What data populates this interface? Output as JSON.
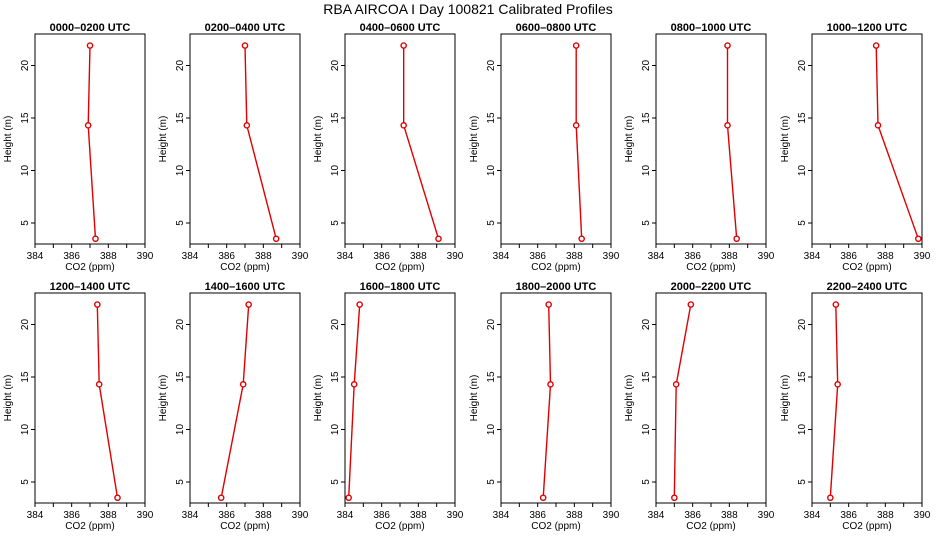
{
  "figure": {
    "title": "RBA AIRCOA I  Day 100821  Calibrated Profiles"
  },
  "colors": {
    "series": "#e00000",
    "axis": "#000000",
    "background": "#ffffff"
  },
  "chart_data": [
    {
      "type": "line",
      "title": "0000–0200 UTC",
      "xlabel": "CO2 (ppm)",
      "ylabel": "Height (m)",
      "xlim": [
        384,
        390
      ],
      "ylim": [
        3,
        23
      ],
      "xticks": [
        384,
        386,
        388,
        390
      ],
      "yticks": [
        5,
        10,
        15,
        20
      ],
      "series": [
        {
          "name": "profile",
          "x": [
            387.3,
            386.9,
            387.0
          ],
          "y": [
            3.5,
            14.3,
            21.9
          ]
        }
      ]
    },
    {
      "type": "line",
      "title": "0200–0400 UTC",
      "xlabel": "CO2 (ppm)",
      "ylabel": "Height (m)",
      "xlim": [
        384,
        390
      ],
      "ylim": [
        3,
        23
      ],
      "xticks": [
        384,
        386,
        388,
        390
      ],
      "yticks": [
        5,
        10,
        15,
        20
      ],
      "series": [
        {
          "name": "profile",
          "x": [
            388.7,
            387.1,
            387.0
          ],
          "y": [
            3.5,
            14.3,
            21.9
          ]
        }
      ]
    },
    {
      "type": "line",
      "title": "0400–0600 UTC",
      "xlabel": "CO2 (ppm)",
      "ylabel": "Height (m)",
      "xlim": [
        384,
        390
      ],
      "ylim": [
        3,
        23
      ],
      "xticks": [
        384,
        386,
        388,
        390
      ],
      "yticks": [
        5,
        10,
        15,
        20
      ],
      "series": [
        {
          "name": "profile",
          "x": [
            389.1,
            387.2,
            387.2
          ],
          "y": [
            3.5,
            14.3,
            21.9
          ]
        }
      ]
    },
    {
      "type": "line",
      "title": "0600–0800 UTC",
      "xlabel": "CO2 (ppm)",
      "ylabel": "Height (m)",
      "xlim": [
        384,
        390
      ],
      "ylim": [
        3,
        23
      ],
      "xticks": [
        384,
        386,
        388,
        390
      ],
      "yticks": [
        5,
        10,
        15,
        20
      ],
      "series": [
        {
          "name": "profile",
          "x": [
            388.4,
            388.1,
            388.1
          ],
          "y": [
            3.5,
            14.3,
            21.9
          ]
        }
      ]
    },
    {
      "type": "line",
      "title": "0800–1000 UTC",
      "xlabel": "CO2 (ppm)",
      "ylabel": "Height (m)",
      "xlim": [
        384,
        390
      ],
      "ylim": [
        3,
        23
      ],
      "xticks": [
        384,
        386,
        388,
        390
      ],
      "yticks": [
        5,
        10,
        15,
        20
      ],
      "series": [
        {
          "name": "profile",
          "x": [
            388.4,
            387.9,
            387.9
          ],
          "y": [
            3.5,
            14.3,
            21.9
          ]
        }
      ]
    },
    {
      "type": "line",
      "title": "1000–1200 UTC",
      "xlabel": "CO2 (ppm)",
      "ylabel": "Height (m)",
      "xlim": [
        384,
        390
      ],
      "ylim": [
        3,
        23
      ],
      "xticks": [
        384,
        386,
        388,
        390
      ],
      "yticks": [
        5,
        10,
        15,
        20
      ],
      "series": [
        {
          "name": "profile",
          "x": [
            389.8,
            387.6,
            387.5
          ],
          "y": [
            3.5,
            14.3,
            21.9
          ]
        }
      ]
    },
    {
      "type": "line",
      "title": "1200–1400 UTC",
      "xlabel": "CO2 (ppm)",
      "ylabel": "Height (m)",
      "xlim": [
        384,
        390
      ],
      "ylim": [
        3,
        23
      ],
      "xticks": [
        384,
        386,
        388,
        390
      ],
      "yticks": [
        5,
        10,
        15,
        20
      ],
      "series": [
        {
          "name": "profile",
          "x": [
            388.5,
            387.5,
            387.4
          ],
          "y": [
            3.5,
            14.3,
            21.9
          ]
        }
      ]
    },
    {
      "type": "line",
      "title": "1400–1600 UTC",
      "xlabel": "CO2 (ppm)",
      "ylabel": "Height (m)",
      "xlim": [
        384,
        390
      ],
      "ylim": [
        3,
        23
      ],
      "xticks": [
        384,
        386,
        388,
        390
      ],
      "yticks": [
        5,
        10,
        15,
        20
      ],
      "series": [
        {
          "name": "profile",
          "x": [
            385.7,
            386.9,
            387.2
          ],
          "y": [
            3.5,
            14.3,
            21.9
          ]
        }
      ]
    },
    {
      "type": "line",
      "title": "1600–1800 UTC",
      "xlabel": "CO2 (ppm)",
      "ylabel": "Height (m)",
      "xlim": [
        384,
        390
      ],
      "ylim": [
        3,
        23
      ],
      "xticks": [
        384,
        386,
        388,
        390
      ],
      "yticks": [
        5,
        10,
        15,
        20
      ],
      "series": [
        {
          "name": "profile",
          "x": [
            384.2,
            384.5,
            384.8
          ],
          "y": [
            3.5,
            14.3,
            21.9
          ]
        }
      ]
    },
    {
      "type": "line",
      "title": "1800–2000 UTC",
      "xlabel": "CO2 (ppm)",
      "ylabel": "Height (m)",
      "xlim": [
        384,
        390
      ],
      "ylim": [
        3,
        23
      ],
      "xticks": [
        384,
        386,
        388,
        390
      ],
      "yticks": [
        5,
        10,
        15,
        20
      ],
      "series": [
        {
          "name": "profile",
          "x": [
            386.3,
            386.7,
            386.6
          ],
          "y": [
            3.5,
            14.3,
            21.9
          ]
        }
      ]
    },
    {
      "type": "line",
      "title": "2000–2200 UTC",
      "xlabel": "CO2 (ppm)",
      "ylabel": "Height (m)",
      "xlim": [
        384,
        390
      ],
      "ylim": [
        3,
        23
      ],
      "xticks": [
        384,
        386,
        388,
        390
      ],
      "yticks": [
        5,
        10,
        15,
        20
      ],
      "series": [
        {
          "name": "profile",
          "x": [
            385.0,
            385.1,
            385.9
          ],
          "y": [
            3.5,
            14.3,
            21.9
          ]
        }
      ]
    },
    {
      "type": "line",
      "title": "2200–2400 UTC",
      "xlabel": "CO2 (ppm)",
      "ylabel": "Height (m)",
      "xlim": [
        384,
        390
      ],
      "ylim": [
        3,
        23
      ],
      "xticks": [
        384,
        386,
        388,
        390
      ],
      "yticks": [
        5,
        10,
        15,
        20
      ],
      "series": [
        {
          "name": "profile",
          "x": [
            385.0,
            385.4,
            385.3
          ],
          "y": [
            3.5,
            14.3,
            21.9
          ]
        }
      ]
    }
  ]
}
